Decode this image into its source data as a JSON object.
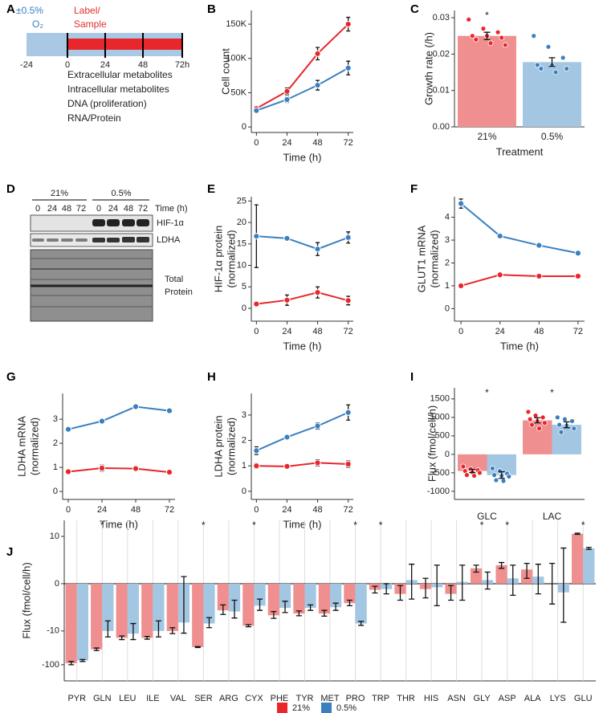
{
  "schematic": {
    "panel_label": "A",
    "oxygen": "±0.5%",
    "oxygen_unit": "O₂",
    "label_sample": [
      "Label/",
      "Sample"
    ],
    "timeline": [
      "-24",
      "0",
      "24",
      "48",
      "72h"
    ],
    "measurements": [
      "Extracellular metabolites",
      "Intracellular metabolites",
      "DNA (proliferation)",
      "RNA/Protein"
    ]
  },
  "blot": {
    "panel_label": "D",
    "groups": [
      "21%",
      "0.5%"
    ],
    "time_header": "Time (h)",
    "lanes": [
      "0",
      "24",
      "48",
      "72",
      "0",
      "24",
      "48",
      "72"
    ],
    "bands": [
      "HIF-1α",
      "LDHA"
    ],
    "total": [
      "Total",
      "Protein"
    ]
  },
  "chart_data": [
    {
      "type": "line",
      "panel_label": "B",
      "ylabel": "Cell count",
      "xlabel": "Time (h)",
      "x": [
        0,
        24,
        48,
        72
      ],
      "xlim": [
        -4,
        76
      ],
      "xticks": [
        0,
        24,
        48,
        72
      ],
      "ylim": [
        -8000,
        170000
      ],
      "yticks": [
        0,
        {
          "value": 50000,
          "label": "50K"
        },
        {
          "value": 100000,
          "label": "100K"
        },
        {
          "value": 150000,
          "label": "150K"
        }
      ],
      "series": [
        {
          "color": "#e8262b",
          "values": [
            27000,
            52000,
            107000,
            150000
          ],
          "errors": [
            2000,
            5000,
            9000,
            10000
          ]
        },
        {
          "color": "#3a80c0",
          "values": [
            24000,
            40000,
            61000,
            86000
          ],
          "errors": [
            2000,
            4000,
            7000,
            10000
          ]
        }
      ]
    },
    {
      "type": "bar",
      "panel_label": "C",
      "ylabel": "Growth rate (/h)",
      "xlabel": "Treatment",
      "categories": [
        "21%",
        "0.5%"
      ],
      "values": [
        0.025,
        0.0178
      ],
      "errors": [
        0.001,
        0.0012
      ],
      "colors": [
        "#f08f8f",
        "#a3c6e2"
      ],
      "point_colors": [
        "#e8262b",
        "#3a80c0"
      ],
      "points": [
        [
          0.0295,
          0.027,
          0.026,
          0.025,
          0.025,
          0.0245,
          0.024,
          0.023,
          0.0225
        ],
        [
          0.025,
          0.022,
          0.019,
          0.017,
          0.017,
          0.016,
          0.016,
          0.015
        ]
      ],
      "stars": [
        "*",
        null
      ],
      "ylim": [
        0,
        0.032
      ],
      "yticks": [
        {
          "value": 0,
          "label": "0.00"
        },
        0.01,
        0.02,
        0.03
      ]
    },
    {
      "type": "line",
      "panel_label": "E",
      "ylabel": [
        "HIF-1α protein",
        "(normalized)"
      ],
      "xlabel": "Time (h)",
      "x": [
        0,
        24,
        48,
        72
      ],
      "xlim": [
        -4,
        76
      ],
      "xticks": [
        0,
        24,
        48,
        72
      ],
      "ylim": [
        -3,
        26
      ],
      "yticks": [
        0,
        5,
        10,
        15,
        20,
        25
      ],
      "series": [
        {
          "color": "#e8262b",
          "values": [
            1.0,
            1.9,
            3.7,
            1.8
          ],
          "errors": [
            0.3,
            1.2,
            1.3,
            1.0
          ]
        },
        {
          "color": "#3a80c0",
          "values": [
            16.8,
            16.3,
            13.8,
            16.5
          ],
          "errors": [
            7.3,
            0.4,
            1.5,
            1.3
          ]
        }
      ]
    },
    {
      "type": "line",
      "panel_label": "F",
      "ylabel": [
        "GLUT1 mRNA",
        "(normalized)"
      ],
      "xlabel": "Time (h)",
      "x": [
        0,
        24,
        48,
        72
      ],
      "xlim": [
        -4,
        76
      ],
      "xticks": [
        0,
        24,
        48,
        72
      ],
      "ylim": [
        -0.55,
        4.9
      ],
      "yticks": [
        0,
        1,
        2,
        3,
        4
      ],
      "series": [
        {
          "color": "#e8262b",
          "values": [
            1.0,
            1.48,
            1.42,
            1.42
          ],
          "errors": [
            0.03,
            0.05,
            0.04,
            0.04
          ]
        },
        {
          "color": "#3a80c0",
          "values": [
            4.6,
            3.18,
            2.77,
            2.43
          ],
          "errors": [
            0.2,
            0.05,
            0.05,
            0.05
          ]
        }
      ]
    },
    {
      "type": "line",
      "panel_label": "G",
      "ylabel": [
        "LDHA mRNA",
        "(normalized)"
      ],
      "xlabel": "Time (h)",
      "x": [
        0,
        24,
        48,
        72
      ],
      "xlim": [
        -4,
        76
      ],
      "xticks": [
        0,
        24,
        48,
        72
      ],
      "ylim": [
        -0.33,
        4.07
      ],
      "yticks": [
        0,
        1,
        2,
        3
      ],
      "series": [
        {
          "color": "#e8262b",
          "values": [
            0.82,
            0.97,
            0.95,
            0.8
          ],
          "errors": [
            0.03,
            0.12,
            0.04,
            0.03
          ]
        },
        {
          "color": "#3a80c0",
          "values": [
            2.58,
            2.92,
            3.52,
            3.35
          ],
          "errors": [
            0.03,
            0.03,
            0.03,
            0.03
          ]
        }
      ]
    },
    {
      "type": "line",
      "panel_label": "H",
      "ylabel": [
        "LDHA protein",
        "(normalized)"
      ],
      "xlabel": "Time (h)",
      "x": [
        0,
        24,
        48,
        72
      ],
      "xlim": [
        -4,
        76
      ],
      "xticks": [
        0,
        24,
        48,
        72
      ],
      "ylim": [
        -0.32,
        3.85
      ],
      "yticks": [
        0,
        1,
        2,
        3
      ],
      "series": [
        {
          "color": "#e8262b",
          "values": [
            1.0,
            0.98,
            1.12,
            1.07
          ],
          "errors": [
            0.1,
            0.03,
            0.12,
            0.12
          ]
        },
        {
          "color": "#3a80c0",
          "values": [
            1.6,
            2.13,
            2.57,
            3.1
          ],
          "errors": [
            0.15,
            0.04,
            0.12,
            0.3
          ]
        }
      ]
    },
    {
      "type": "bar",
      "panel_label": "I",
      "ylabel": "Flux (fmol/cell/h)",
      "categories": [
        "GLC",
        "LAC"
      ],
      "stars": [
        "*",
        "*"
      ],
      "ylim": [
        -1220,
        1800
      ],
      "yticks": [
        -1000,
        -500,
        0,
        500,
        1000,
        1500
      ],
      "series": [
        {
          "color": "#f08f8f",
          "point_color": "#e8262b",
          "values": [
            -450,
            920
          ],
          "errors": [
            45,
            70
          ],
          "points": [
            [
              -330,
              -400,
              -430,
              -450,
              -480,
              -500,
              -560,
              -580
            ],
            [
              1150,
              1050,
              1000,
              950,
              900,
              850,
              800,
              700
            ]
          ]
        },
        {
          "color": "#a3c6e2",
          "point_color": "#3a80c0",
          "values": [
            -560,
            800
          ],
          "errors": [
            90,
            80
          ],
          "points": [
            [
              -380,
              -450,
              -520,
              -560,
              -580,
              -600,
              -700,
              -720
            ],
            [
              1000,
              950,
              900,
              800,
              780,
              700,
              600
            ]
          ]
        }
      ]
    },
    {
      "type": "bar",
      "panel_label": "J",
      "ylabel": "Flux (fmol/cell/h)",
      "yscale": "symlog",
      "zero_line": true,
      "category_separators": true,
      "ylim": [
        -300,
        30
      ],
      "yticks": [
        -100,
        -10,
        0,
        10
      ],
      "categories": [
        "PYR",
        "GLN",
        "LEU",
        "ILE",
        "VAL",
        "SER",
        "ARG",
        "CYX",
        "PHE",
        "TYR",
        "MET",
        "PRO",
        "TRP",
        "THR",
        "HIS",
        "ASN",
        "GLY",
        "ASP",
        "ALA",
        "LYS",
        "GLU"
      ],
      "stars": [
        null,
        "*",
        null,
        null,
        null,
        "*",
        null,
        "*",
        null,
        null,
        null,
        "*",
        "*",
        null,
        null,
        null,
        "*",
        "*",
        null,
        null,
        "*"
      ],
      "series": [
        {
          "name": "21%",
          "color": "#f08f8f",
          "legend_color": "#e8262b",
          "values": [
            -90,
            -35,
            -16,
            -16,
            -10,
            -30,
            -2.4,
            -7,
            -3.4,
            -3,
            -3,
            -1.4,
            -0.34,
            -0.6,
            -0.3,
            -0.6,
            1.0,
            1.3,
            0.9,
            0,
            12
          ],
          "errors": [
            10,
            3,
            2,
            1.5,
            2,
            1,
            0.8,
            0.5,
            0.8,
            0.5,
            0.6,
            0.3,
            0.2,
            0.5,
            0.6,
            0.5,
            0.3,
            0.3,
            0.6,
            1.5,
            0.5
          ]
        },
        {
          "name": "0.5%",
          "color": "#a3c6e2",
          "legend_color": "#3a80c0",
          "values": [
            -75,
            -10,
            -12,
            -10,
            -5.6,
            -6,
            -2.6,
            -1.7,
            -2,
            -2,
            -1.9,
            -6,
            -0.3,
            0.2,
            -0.2,
            0.1,
            0.2,
            0.3,
            0.4,
            -0.5,
            4.4
          ],
          "errors": [
            5,
            5,
            6,
            5,
            6,
            2,
            1.5,
            0.7,
            0.8,
            0.4,
            0.5,
            0.8,
            0.3,
            1.2,
            1.5,
            1.2,
            0.5,
            1,
            1,
            5,
            0.3
          ]
        }
      ]
    }
  ]
}
